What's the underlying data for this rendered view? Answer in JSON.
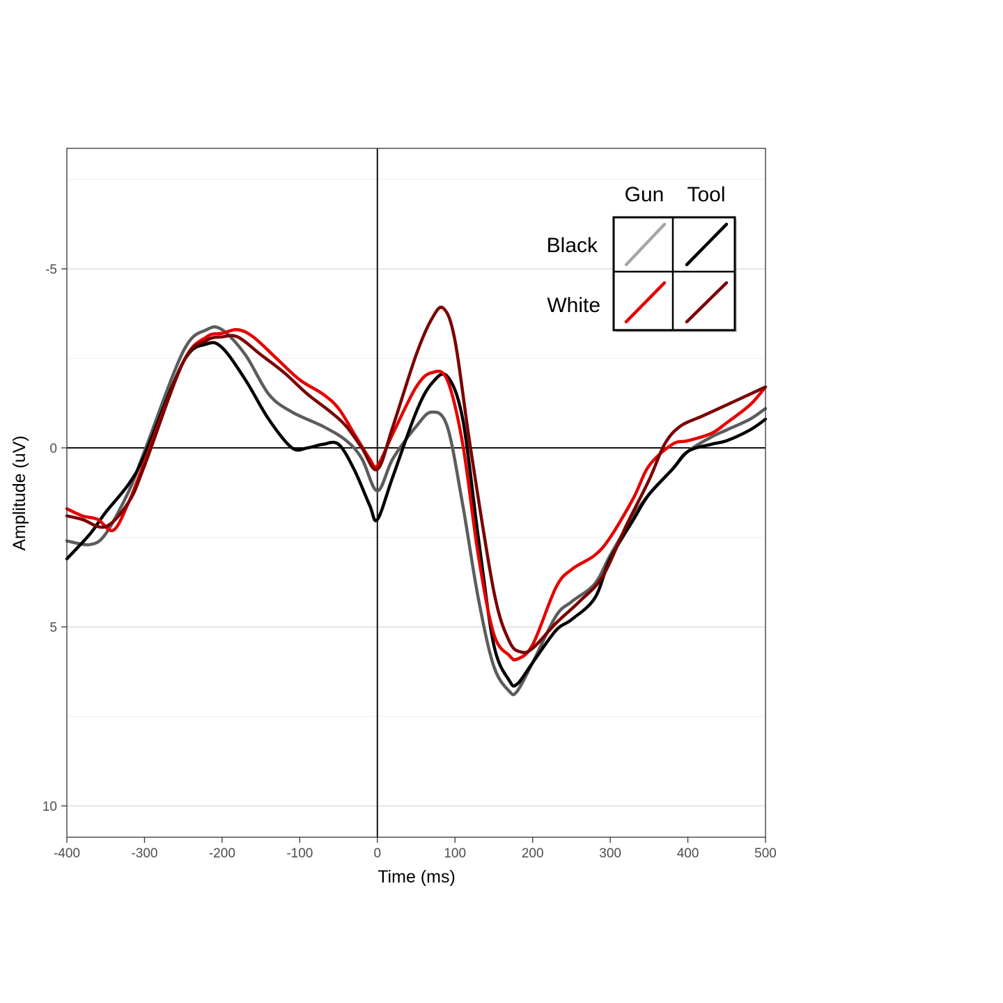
{
  "chart_data": {
    "type": "line",
    "xlabel": "Time (ms)",
    "ylabel": "Amplitude (uV)",
    "xlim": [
      -400,
      500
    ],
    "ylim": [
      10.9,
      -8.3
    ],
    "y_axis_inverted": true,
    "grid": "horizontal major and minor lines",
    "xticks": [
      -400,
      -300,
      -200,
      -100,
      0,
      100,
      200,
      300,
      400,
      500
    ],
    "yticks": [
      -5,
      0,
      5,
      10
    ],
    "reference_lines": {
      "x": 0,
      "y": 0
    },
    "legend": {
      "placement": "top-right",
      "columns": [
        "Gun",
        "Tool"
      ],
      "rows": [
        "Black",
        "White"
      ]
    },
    "series": [
      {
        "race": "Black",
        "object": "Gun",
        "color": "#5c5c5c",
        "x": [
          -400,
          -370,
          -350,
          -320,
          -300,
          -250,
          -220,
          -200,
          -170,
          -140,
          -110,
          -70,
          -40,
          -20,
          0,
          20,
          50,
          70,
          90,
          110,
          130,
          150,
          170,
          180,
          200,
          230,
          250,
          280,
          300,
          330,
          350,
          380,
          400,
          430,
          450,
          480,
          500
        ],
        "y": [
          2.6,
          2.7,
          2.4,
          1.2,
          0.1,
          -2.7,
          -3.3,
          -3.3,
          -2.6,
          -1.5,
          -1.0,
          -0.6,
          -0.2,
          0.3,
          1.2,
          0.3,
          -0.6,
          -1.0,
          -0.6,
          1.6,
          4.2,
          6.1,
          6.8,
          6.8,
          6.0,
          4.7,
          4.3,
          3.8,
          3.0,
          1.9,
          1.3,
          0.6,
          0.1,
          -0.3,
          -0.5,
          -0.8,
          -1.1
        ]
      },
      {
        "race": "Black",
        "object": "Tool",
        "color": "#000000",
        "x": [
          -400,
          -370,
          -350,
          -320,
          -300,
          -250,
          -220,
          -200,
          -170,
          -140,
          -110,
          -90,
          -70,
          -50,
          -30,
          -10,
          0,
          20,
          50,
          70,
          90,
          110,
          130,
          150,
          170,
          180,
          200,
          230,
          250,
          280,
          300,
          330,
          350,
          380,
          400,
          430,
          450,
          480,
          500
        ],
        "y": [
          3.1,
          2.4,
          1.8,
          1.0,
          0.2,
          -2.4,
          -2.9,
          -2.8,
          -1.9,
          -0.8,
          0.0,
          0.0,
          -0.1,
          -0.1,
          0.6,
          1.6,
          2.0,
          0.8,
          -1.0,
          -1.8,
          -2.0,
          -0.8,
          2.5,
          5.5,
          6.5,
          6.6,
          6.0,
          5.1,
          4.8,
          4.2,
          3.1,
          2.0,
          1.3,
          0.6,
          0.1,
          -0.1,
          -0.2,
          -0.5,
          -0.8
        ]
      },
      {
        "race": "White",
        "object": "Gun",
        "color": "#e60000",
        "x": [
          -400,
          -380,
          -360,
          -340,
          -320,
          -300,
          -250,
          -220,
          -200,
          -180,
          -160,
          -130,
          -100,
          -70,
          -50,
          -30,
          -10,
          0,
          20,
          50,
          70,
          90,
          110,
          130,
          150,
          170,
          180,
          200,
          230,
          250,
          280,
          300,
          330,
          350,
          380,
          400,
          430,
          450,
          480,
          500
        ],
        "y": [
          1.7,
          1.9,
          2.0,
          2.3,
          1.5,
          0.4,
          -2.4,
          -3.1,
          -3.2,
          -3.3,
          -3.1,
          -2.5,
          -1.9,
          -1.5,
          -1.1,
          -0.4,
          0.3,
          0.5,
          -0.4,
          -1.7,
          -2.1,
          -1.9,
          -0.1,
          3.0,
          5.2,
          5.8,
          5.9,
          5.5,
          3.9,
          3.4,
          3.0,
          2.5,
          1.4,
          0.5,
          -0.1,
          -0.2,
          -0.4,
          -0.7,
          -1.2,
          -1.7
        ]
      },
      {
        "race": "White",
        "object": "Tool",
        "color": "#7a0000",
        "x": [
          -400,
          -380,
          -350,
          -320,
          -300,
          -250,
          -220,
          -200,
          -180,
          -150,
          -120,
          -90,
          -60,
          -40,
          -20,
          0,
          20,
          50,
          70,
          85,
          100,
          120,
          150,
          170,
          185,
          200,
          230,
          260,
          290,
          320,
          350,
          370,
          390,
          420,
          450,
          480,
          500
        ],
        "y": [
          1.9,
          2.0,
          2.2,
          1.5,
          0.5,
          -2.4,
          -3.0,
          -3.1,
          -3.1,
          -2.6,
          -2.1,
          -1.5,
          -1.0,
          -0.6,
          0.0,
          0.6,
          -0.6,
          -2.6,
          -3.6,
          -3.9,
          -3.0,
          0.0,
          4.0,
          5.4,
          5.7,
          5.6,
          4.9,
          4.3,
          3.6,
          2.2,
          0.9,
          -0.1,
          -0.6,
          -0.9,
          -1.2,
          -1.5,
          -1.7
        ]
      }
    ]
  }
}
